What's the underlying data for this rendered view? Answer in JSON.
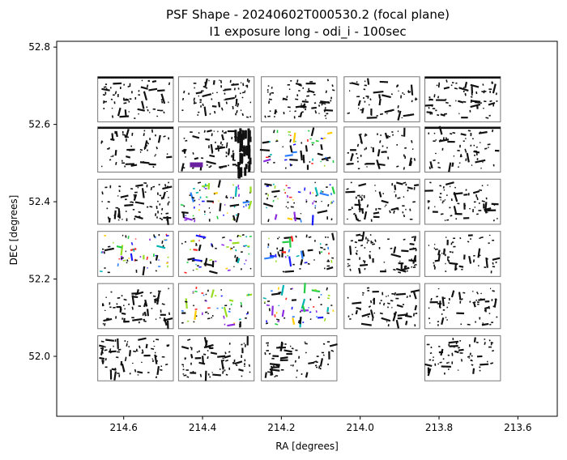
{
  "chart_data": {
    "type": "scatter",
    "title_line1": "PSF Shape - 20240602T000530.2 (focal plane)",
    "title_line2": "I1 exposure long - odi_i - 100sec",
    "xlabel": "RA [degrees]",
    "ylabel": "DEC [degrees]",
    "xlim": [
      214.77,
      213.5
    ],
    "ylim": [
      51.845,
      52.815
    ],
    "x_ticks": [
      "214.6",
      "214.4",
      "214.2",
      "214.0",
      "213.8",
      "213.6"
    ],
    "x_tick_values": [
      214.6,
      214.4,
      214.2,
      214.0,
      213.8,
      213.6
    ],
    "y_ticks": [
      "52.0",
      "52.2",
      "52.4",
      "52.6",
      "52.8"
    ],
    "y_tick_values": [
      52.0,
      52.2,
      52.4,
      52.6,
      52.8
    ],
    "grid": false,
    "ota_grid": {
      "columns_ra": [
        214.57,
        214.365,
        214.155,
        213.945,
        213.74
      ],
      "rows_dec": [
        52.665,
        52.535,
        52.4,
        52.265,
        52.13,
        51.995
      ],
      "width_ra": 0.2,
      "height_dec": 0.125,
      "missing": [
        [
          5,
          3
        ]
      ],
      "saturated_cells": [
        [
          1,
          1
        ]
      ],
      "colored_cells": [
        [
          1,
          2
        ],
        [
          2,
          1
        ],
        [
          2,
          2
        ],
        [
          3,
          0
        ],
        [
          3,
          1
        ],
        [
          3,
          2
        ],
        [
          4,
          1
        ],
        [
          4,
          2
        ]
      ]
    },
    "colors": {
      "frame": "#777777",
      "default_stroke": "#111111",
      "palette": [
        "#1a1aff",
        "#2a7fff",
        "#00b3b3",
        "#22cc44",
        "#99dd22",
        "#8a2be2",
        "#ff2222",
        "#ffcc00"
      ]
    }
  }
}
